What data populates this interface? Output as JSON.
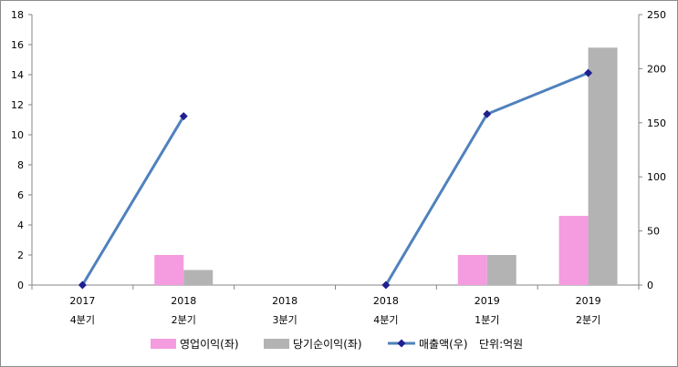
{
  "chart_data": {
    "type": "bar",
    "categories": [
      {
        "year": "2017",
        "quarter": "4분기"
      },
      {
        "year": "2018",
        "quarter": "2분기"
      },
      {
        "year": "2018",
        "quarter": "3분기"
      },
      {
        "year": "2018",
        "quarter": "4분기"
      },
      {
        "year": "2019",
        "quarter": "1분기"
      },
      {
        "year": "2019",
        "quarter": "2분기"
      }
    ],
    "series": [
      {
        "name": "영업이익(좌)",
        "kind": "bar",
        "axis": "left",
        "color": "#f59be0",
        "values": [
          null,
          2,
          null,
          null,
          2,
          4.6
        ]
      },
      {
        "name": "당기순이익(좌)",
        "kind": "bar",
        "axis": "left",
        "color": "#b3b3b3",
        "values": [
          null,
          1,
          null,
          null,
          2,
          15.8
        ]
      },
      {
        "name": "매출액(우)",
        "kind": "line",
        "axis": "right",
        "color": "#4f81bd",
        "marker_color": "#1f1f8f",
        "values": [
          0,
          156,
          null,
          0,
          158,
          196
        ]
      }
    ],
    "y_left": {
      "range": [
        0,
        18
      ],
      "ticks": [
        0,
        2,
        4,
        6,
        8,
        10,
        12,
        14,
        16,
        18
      ]
    },
    "y_right": {
      "range": [
        0,
        250
      ],
      "ticks": [
        0,
        50,
        100,
        150,
        200,
        250
      ]
    },
    "legend_position": "bottom",
    "unit_note": "단위:억원",
    "grid": false
  }
}
